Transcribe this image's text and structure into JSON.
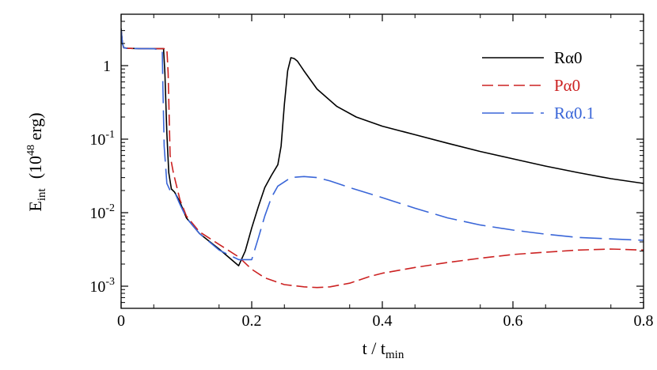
{
  "chart_data": {
    "type": "line",
    "xlabel": {
      "main": "t / t",
      "sub": "min"
    },
    "ylabel": {
      "main": "E",
      "sub": "int",
      "unit_pre": "(10",
      "unit_exp": "48",
      "unit_post": " erg)"
    },
    "xlim": [
      0,
      0.8
    ],
    "ylim": [
      0.0005,
      5
    ],
    "yscale": "log",
    "grid": false,
    "legend_position": "top-right",
    "x_ticks": [
      {
        "value": 0,
        "label": "0"
      },
      {
        "value": 0.2,
        "label": "0.2"
      },
      {
        "value": 0.4,
        "label": "0.4"
      },
      {
        "value": 0.6,
        "label": "0.6"
      },
      {
        "value": 0.8,
        "label": "0.8"
      }
    ],
    "y_ticks": [
      {
        "value": 1,
        "label": "1"
      },
      {
        "value": 0.1,
        "label": "10",
        "exp": "-1"
      },
      {
        "value": 0.01,
        "label": "10",
        "exp": "-2"
      },
      {
        "value": 0.001,
        "label": "10",
        "exp": "-3"
      }
    ],
    "series": [
      {
        "name": "Rα0",
        "color": "#000000",
        "dash": "solid",
        "x": [
          0,
          0.002,
          0.004,
          0.01,
          0.03,
          0.05,
          0.065,
          0.067,
          0.07,
          0.073,
          0.077,
          0.082,
          0.09,
          0.1,
          0.12,
          0.15,
          0.18,
          0.19,
          0.2,
          0.21,
          0.22,
          0.23,
          0.24,
          0.245,
          0.25,
          0.255,
          0.26,
          0.265,
          0.27,
          0.28,
          0.3,
          0.33,
          0.36,
          0.4,
          0.45,
          0.5,
          0.55,
          0.6,
          0.65,
          0.7,
          0.75,
          0.8
        ],
        "y": [
          3.2,
          2.0,
          1.75,
          1.72,
          1.7,
          1.7,
          1.7,
          0.8,
          0.12,
          0.035,
          0.021,
          0.019,
          0.014,
          0.0085,
          0.0052,
          0.0032,
          0.0019,
          0.003,
          0.0062,
          0.012,
          0.022,
          0.032,
          0.045,
          0.08,
          0.3,
          0.85,
          1.28,
          1.25,
          1.15,
          0.85,
          0.48,
          0.28,
          0.2,
          0.15,
          0.115,
          0.088,
          0.068,
          0.054,
          0.043,
          0.035,
          0.029,
          0.025
        ]
      },
      {
        "name": "Pα0",
        "color": "#cc2222",
        "dash": "short",
        "x": [
          0,
          0.002,
          0.004,
          0.01,
          0.03,
          0.05,
          0.07,
          0.072,
          0.075,
          0.08,
          0.09,
          0.1,
          0.12,
          0.15,
          0.18,
          0.2,
          0.22,
          0.25,
          0.28,
          0.3,
          0.32,
          0.35,
          0.38,
          0.4,
          0.45,
          0.5,
          0.55,
          0.6,
          0.65,
          0.7,
          0.75,
          0.8
        ],
        "y": [
          3.0,
          2.0,
          1.75,
          1.72,
          1.7,
          1.7,
          1.7,
          0.8,
          0.06,
          0.035,
          0.015,
          0.009,
          0.0055,
          0.0037,
          0.0025,
          0.0017,
          0.0013,
          0.00105,
          0.00098,
          0.00096,
          0.00098,
          0.0011,
          0.00135,
          0.0015,
          0.0018,
          0.0021,
          0.0024,
          0.0027,
          0.0029,
          0.0031,
          0.0032,
          0.0031
        ]
      },
      {
        "name": "Rα0.1",
        "color": "#3a66d8",
        "dash": "long",
        "x": [
          0,
          0.002,
          0.004,
          0.01,
          0.03,
          0.05,
          0.063,
          0.064,
          0.066,
          0.07,
          0.075,
          0.082,
          0.09,
          0.1,
          0.12,
          0.15,
          0.18,
          0.19,
          0.2,
          0.21,
          0.22,
          0.23,
          0.24,
          0.26,
          0.28,
          0.3,
          0.32,
          0.35,
          0.4,
          0.45,
          0.5,
          0.55,
          0.6,
          0.65,
          0.7,
          0.75,
          0.8
        ],
        "y": [
          3.1,
          2.0,
          1.75,
          1.72,
          1.7,
          1.7,
          1.6,
          0.5,
          0.08,
          0.025,
          0.02,
          0.019,
          0.013,
          0.0085,
          0.0052,
          0.0031,
          0.0023,
          0.0023,
          0.0023,
          0.0045,
          0.009,
          0.016,
          0.023,
          0.03,
          0.031,
          0.03,
          0.027,
          0.022,
          0.016,
          0.0115,
          0.0085,
          0.0068,
          0.0058,
          0.0051,
          0.0046,
          0.0044,
          0.0042
        ]
      }
    ]
  }
}
